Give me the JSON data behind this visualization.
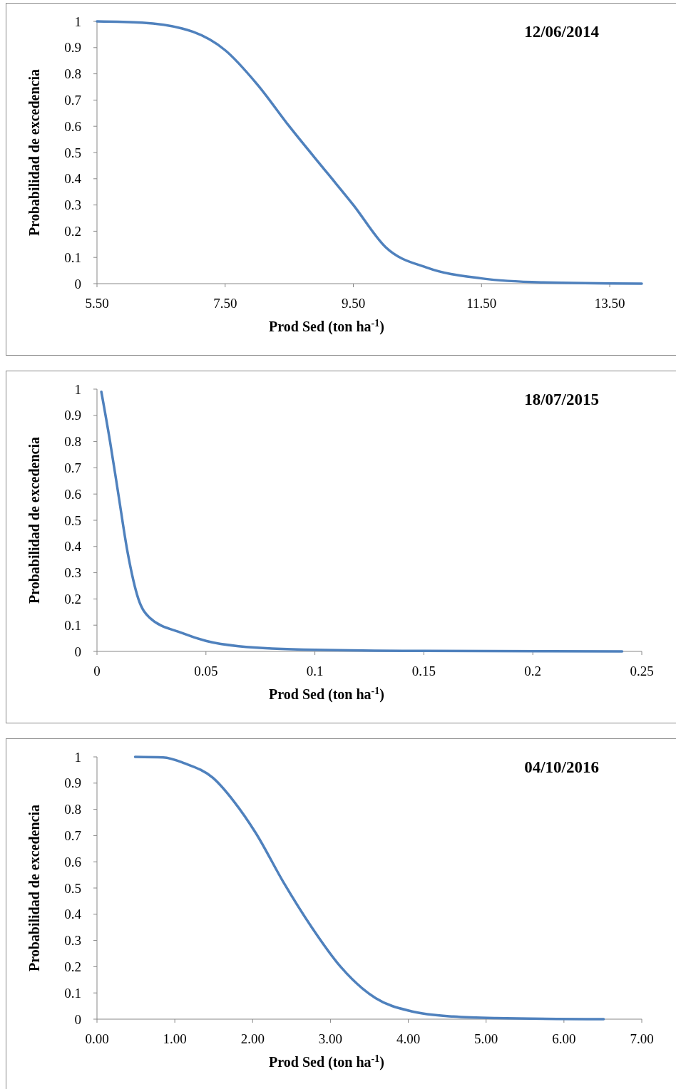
{
  "chart_data": [
    {
      "type": "line",
      "title": "12/06/2014",
      "xlabel": "Prod Sed (ton ha$^{-1}$)",
      "ylabel": "Probabilidad de excedencia",
      "xlim": [
        5.5,
        14
      ],
      "xticks": [
        {
          "value": 5.5,
          "label": "5.50"
        },
        {
          "value": 7.5,
          "label": "7.50"
        },
        {
          "value": 9.5,
          "label": "9.50"
        },
        {
          "value": 11.5,
          "label": "11.50"
        },
        {
          "value": 13.5,
          "label": "13.50"
        }
      ],
      "ylim": [
        0,
        1
      ],
      "yticks": [
        0,
        0.1,
        0.2,
        0.3,
        0.4,
        0.5,
        0.6,
        0.7,
        0.8,
        0.9,
        1
      ],
      "grid": false,
      "marker": "none",
      "line_style": "solid",
      "series": [
        {
          "color": "#4f81bd",
          "x": [
            5.5,
            6.2,
            7.0,
            7.5,
            8.0,
            8.5,
            9.1,
            9.5,
            10.0,
            10.66,
            11.5,
            12.43,
            14.0
          ],
          "values": [
            1,
            0.995,
            0.96,
            0.89,
            0.76,
            0.6,
            0.42,
            0.3,
            0.14,
            0.06,
            0.02,
            0.005,
            0
          ]
        }
      ]
    },
    {
      "type": "line",
      "title": "18/07/2015",
      "xlabel": "Prod Sed (ton ha$^{-1}$)",
      "ylabel": "Probabilidad de excedencia",
      "xlim": [
        0,
        0.25
      ],
      "xticks": [
        0,
        0.05,
        0.1,
        0.15,
        0.2,
        0.25
      ],
      "ylim": [
        0,
        1
      ],
      "yticks": [
        0,
        0.1,
        0.2,
        0.3,
        0.4,
        0.5,
        0.6,
        0.7,
        0.8,
        0.9,
        1
      ],
      "grid": false,
      "marker": "none",
      "line_style": "solid",
      "series": [
        {
          "color": "#4f81bd",
          "x": [
            0.002,
            0.006,
            0.0098,
            0.014,
            0.019,
            0.024,
            0.039,
            0.05,
            0.065,
            0.1,
            0.15,
            0.241
          ],
          "values": [
            0.99,
            0.8,
            0.6,
            0.38,
            0.2,
            0.13,
            0.07,
            0.04,
            0.02,
            0.006,
            0.002,
            0
          ]
        }
      ]
    },
    {
      "type": "line",
      "title": "04/10/2016",
      "xlabel": "Prod Sed (ton ha$^{-1}$)",
      "ylabel": "Probabilidad de excedencia",
      "xlim": [
        0,
        7
      ],
      "xticks": [
        {
          "value": 0,
          "label": "0.00"
        },
        {
          "value": 1,
          "label": "1.00"
        },
        {
          "value": 2,
          "label": "2.00"
        },
        {
          "value": 3,
          "label": "3.00"
        },
        {
          "value": 4,
          "label": "4.00"
        },
        {
          "value": 5,
          "label": "5.00"
        },
        {
          "value": 6,
          "label": "6.00"
        },
        {
          "value": 7,
          "label": "7.00"
        }
      ],
      "ylim": [
        0,
        1
      ],
      "yticks": [
        0,
        0.1,
        0.2,
        0.3,
        0.4,
        0.5,
        0.6,
        0.7,
        0.8,
        0.9,
        1
      ],
      "grid": false,
      "marker": "none",
      "line_style": "solid",
      "series": [
        {
          "color": "#4f81bd",
          "x": [
            0.49,
            0.85,
            1.13,
            1.49,
            1.76,
            2.04,
            2.4,
            2.76,
            3.13,
            3.58,
            4.04,
            4.58,
            5.13,
            6.51
          ],
          "values": [
            1,
            0.998,
            0.975,
            0.92,
            0.83,
            0.71,
            0.52,
            0.35,
            0.2,
            0.08,
            0.03,
            0.01,
            0.004,
            0
          ]
        }
      ]
    }
  ]
}
